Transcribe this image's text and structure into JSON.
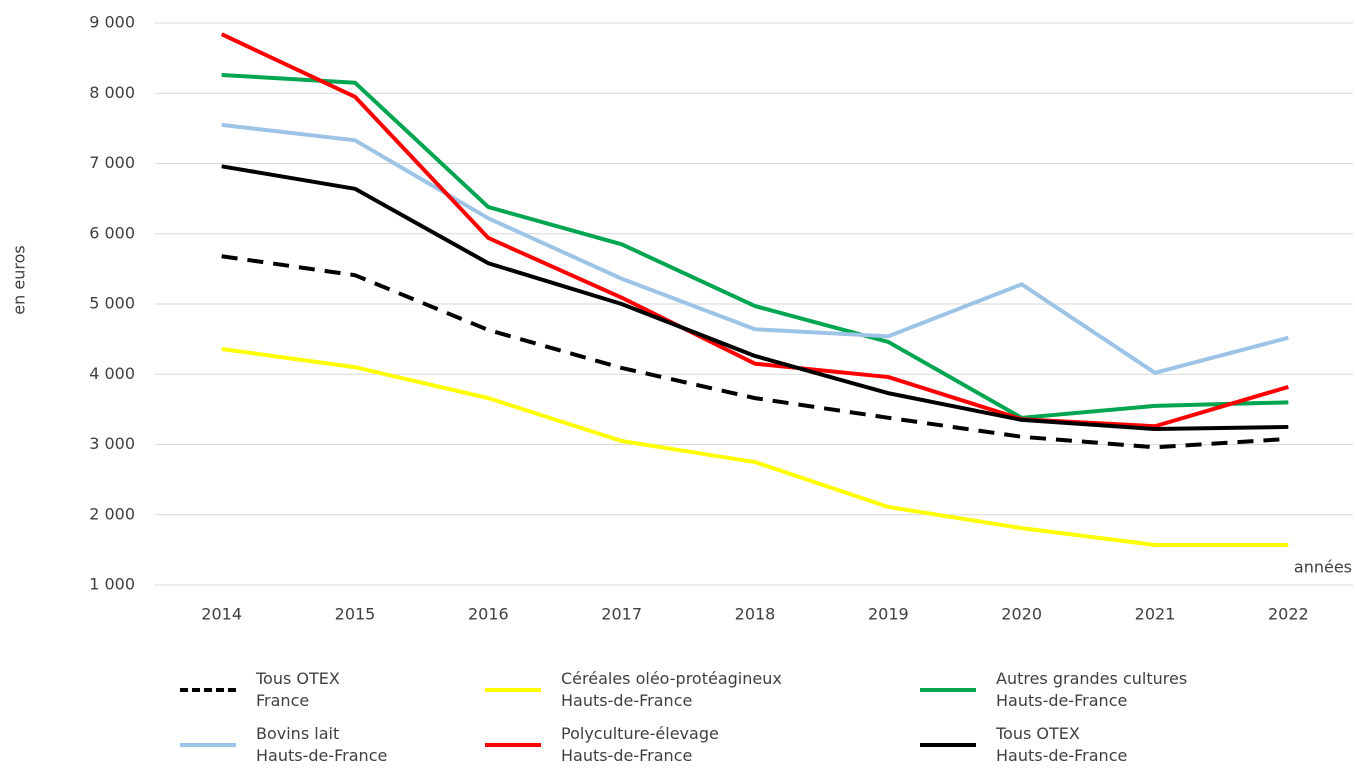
{
  "chart_data": {
    "type": "line",
    "y_label": "en euros",
    "x_label": "années",
    "categories": [
      "2014",
      "2015",
      "2016",
      "2017",
      "2018",
      "2019",
      "2020",
      "2021",
      "2022"
    ],
    "ylim": [
      1000,
      9000
    ],
    "yticks": [
      {
        "value": 1000,
        "label": "1 000"
      },
      {
        "value": 2000,
        "label": "2 000"
      },
      {
        "value": 3000,
        "label": "3 000"
      },
      {
        "value": 4000,
        "label": "4 000"
      },
      {
        "value": 5000,
        "label": "5 000"
      },
      {
        "value": 6000,
        "label": "6 000"
      },
      {
        "value": 7000,
        "label": "7 000"
      },
      {
        "value": 8000,
        "label": "8 000"
      },
      {
        "value": 9000,
        "label": "9 000"
      }
    ],
    "grid": true,
    "series": [
      {
        "name": "Tous OTEX\nFrance",
        "color": "#000000",
        "dash": true,
        "values": [
          5680,
          5410,
          4630,
          4090,
          3660,
          3380,
          3110,
          2960,
          3080
        ]
      },
      {
        "name": "Céréales oléo-protéagineux\nHauts-de-France",
        "color": "#ffff00",
        "values": [
          4360,
          4100,
          3660,
          3050,
          2750,
          2110,
          1810,
          1570,
          1570
        ]
      },
      {
        "name": "Autres grandes cultures\nHauts-de-France",
        "color": "#00a550",
        "values": [
          8260,
          8150,
          6380,
          5850,
          4970,
          4460,
          3380,
          3550,
          3600
        ]
      },
      {
        "name": "Bovins lait\nHauts-de-France",
        "color": "#9dc3e6",
        "values": [
          7550,
          7330,
          6220,
          5360,
          4640,
          4540,
          5280,
          4020,
          4520
        ]
      },
      {
        "name": "Polyculture-élevage\nHauts-de-France",
        "color": "#ff0000",
        "values": [
          8840,
          7950,
          5940,
          5090,
          4150,
          3960,
          3360,
          3260,
          3820
        ]
      },
      {
        "name": "Tous OTEX\nHauts-de-France",
        "color": "#000000",
        "values": [
          6960,
          6640,
          5580,
          5000,
          4260,
          3730,
          3350,
          3220,
          3250
        ]
      }
    ]
  }
}
